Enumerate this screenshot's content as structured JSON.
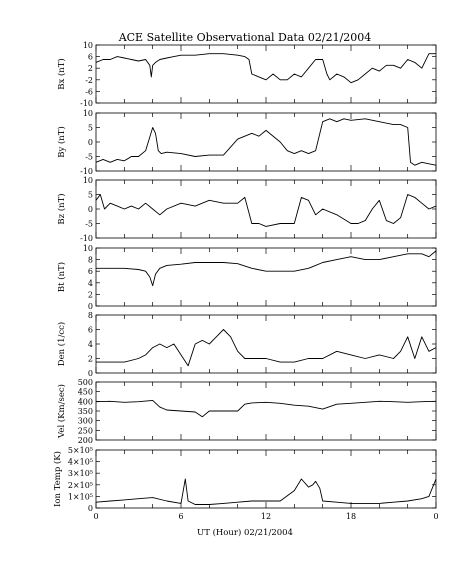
{
  "chart_data": {
    "type": "line",
    "title": "ACE Satellite Observational Data   02/21/2004",
    "xlabel": "UT (Hour)   02/21/2004",
    "x_tick_labels": [
      "0",
      "6",
      "12",
      "18",
      "0"
    ],
    "xlim": [
      0,
      24
    ],
    "color": "#000000",
    "panels": [
      {
        "ylabel": "Bx (nT)",
        "ylim": [
          -10,
          10
        ],
        "y_ticks": [
          -10,
          -6,
          -2,
          2,
          6,
          10
        ],
        "y_tick_labels": [
          "-10",
          "-6",
          "-2",
          "2",
          "6",
          "10"
        ],
        "x": [
          0,
          0.5,
          1.0,
          1.5,
          2.0,
          2.5,
          3.0,
          3.5,
          3.8,
          3.9,
          4.0,
          4.2,
          4.5,
          5.0,
          5.5,
          6.0,
          7.0,
          8.0,
          9.0,
          10.0,
          10.5,
          10.8,
          11.0,
          11.5,
          12.0,
          12.5,
          13.0,
          13.5,
          14.0,
          14.5,
          15.0,
          15.5,
          16.0,
          16.3,
          16.5,
          17.0,
          17.5,
          18.0,
          18.5,
          19.0,
          19.5,
          20.0,
          20.5,
          21.0,
          21.5,
          22.0,
          22.5,
          23.0,
          23.5,
          24.0
        ],
        "values": [
          4,
          5,
          5,
          6,
          5.5,
          5,
          4.5,
          5,
          3,
          -1,
          3,
          4,
          5,
          5.5,
          6,
          6.5,
          6.5,
          7,
          7,
          6.5,
          6,
          5,
          0,
          -1,
          -2,
          0,
          -2,
          -2,
          0,
          -1,
          2,
          5,
          5,
          0,
          -2,
          0,
          -1,
          -3,
          -2,
          0,
          2,
          1,
          3,
          3,
          2,
          5,
          4,
          2,
          7,
          7
        ]
      },
      {
        "ylabel": "By (nT)",
        "ylim": [
          -10,
          10
        ],
        "y_ticks": [
          -10,
          -5,
          0,
          5,
          10
        ],
        "y_tick_labels": [
          "-10",
          "-5",
          "0",
          "5",
          "10"
        ],
        "x": [
          0,
          0.5,
          1.0,
          1.5,
          2.0,
          2.5,
          3.0,
          3.5,
          4.0,
          4.2,
          4.4,
          4.6,
          5.0,
          6.0,
          7.0,
          8.0,
          9.0,
          10.0,
          11.0,
          11.5,
          12.0,
          13.0,
          13.5,
          14.0,
          14.5,
          15.0,
          15.5,
          16.0,
          16.5,
          17.0,
          17.5,
          18.0,
          19.0,
          20.0,
          21.0,
          21.5,
          22.0,
          22.2,
          22.5,
          23.0,
          23.5,
          24.0
        ],
        "values": [
          -7,
          -6,
          -7,
          -6,
          -6.5,
          -5,
          -5,
          -3,
          5,
          3,
          -3,
          -4,
          -3.5,
          -4,
          -5,
          -4.5,
          -4.5,
          1,
          3,
          2,
          4,
          0,
          -3,
          -4,
          -3,
          -4,
          -3,
          7,
          8,
          7,
          8,
          7.5,
          8,
          7,
          6,
          6,
          5,
          -7,
          -8,
          -7,
          -7.5,
          -8
        ]
      },
      {
        "ylabel": "Bz (nT)",
        "ylim": [
          -10,
          10
        ],
        "y_ticks": [
          -10,
          -5,
          0,
          5,
          10
        ],
        "y_tick_labels": [
          "-10",
          "-5",
          "0",
          "5",
          "10"
        ],
        "x": [
          0,
          0.3,
          0.6,
          1.0,
          1.5,
          2.0,
          2.5,
          3.0,
          3.5,
          4.0,
          4.5,
          5.0,
          6.0,
          7.0,
          8.0,
          9.0,
          10.0,
          10.5,
          11.0,
          11.5,
          12.0,
          13.0,
          14.0,
          14.5,
          15.0,
          15.5,
          16.0,
          17.0,
          18.0,
          18.5,
          19.0,
          19.5,
          20.0,
          20.5,
          21.0,
          21.5,
          22.0,
          22.5,
          23.0,
          23.5,
          24.0
        ],
        "values": [
          3,
          5,
          0,
          2,
          1,
          0,
          1,
          0,
          2,
          0,
          -2,
          0,
          2,
          1,
          3,
          2,
          2,
          4,
          -5,
          -5,
          -6,
          -5,
          -5,
          4,
          3,
          -2,
          0,
          -2,
          -5,
          -5,
          -4,
          0,
          3,
          -4,
          -5,
          -3,
          5,
          4,
          2,
          0,
          1
        ]
      },
      {
        "ylabel": "Bt (nT)",
        "ylim": [
          0,
          10
        ],
        "y_ticks": [
          0,
          2,
          4,
          6,
          8,
          10
        ],
        "y_tick_labels": [
          "0",
          "2",
          "4",
          "6",
          "8",
          "10"
        ],
        "x": [
          0,
          1.0,
          2.0,
          3.0,
          3.5,
          3.8,
          4.0,
          4.2,
          4.5,
          5.0,
          6.0,
          7.0,
          8.0,
          9.0,
          10.0,
          11.0,
          12.0,
          13.0,
          14.0,
          15.0,
          15.5,
          16.0,
          17.0,
          18.0,
          19.0,
          20.0,
          21.0,
          22.0,
          23.0,
          23.5,
          24.0
        ],
        "values": [
          6.5,
          6.5,
          6.5,
          6.3,
          6,
          5,
          3.5,
          5.5,
          6.5,
          7,
          7.2,
          7.5,
          7.5,
          7.5,
          7.3,
          6.5,
          6,
          6,
          6,
          6.5,
          7,
          7.5,
          8,
          8.5,
          8,
          8,
          8.5,
          9,
          9,
          8.5,
          9.5
        ]
      },
      {
        "ylabel": "Den (1/cc)",
        "ylim": [
          0,
          8
        ],
        "y_ticks": [
          0,
          2,
          4,
          6,
          8
        ],
        "y_tick_labels": [
          "0",
          "2",
          "4",
          "6",
          "8"
        ],
        "x": [
          0,
          1.0,
          2.0,
          3.0,
          3.5,
          4.0,
          4.5,
          5.0,
          5.5,
          6.0,
          6.5,
          7.0,
          7.5,
          8.0,
          8.5,
          9.0,
          9.5,
          10.0,
          10.5,
          11.0,
          12.0,
          13.0,
          14.0,
          15.0,
          16.0,
          17.0,
          18.0,
          19.0,
          20.0,
          21.0,
          21.5,
          22.0,
          22.5,
          23.0,
          23.5,
          24.0
        ],
        "values": [
          1.5,
          1.5,
          1.5,
          2,
          2.5,
          3.5,
          4,
          3.5,
          4,
          2.5,
          1,
          4,
          4.5,
          4,
          5,
          6,
          5,
          3,
          2,
          2,
          2,
          1.5,
          1.5,
          2,
          2,
          3,
          2.5,
          2,
          2.5,
          2,
          3,
          5,
          2,
          5,
          3,
          3.5
        ]
      },
      {
        "ylabel": "Vel (Km/sec)",
        "ylim": [
          200,
          500
        ],
        "y_ticks": [
          200,
          250,
          300,
          350,
          400,
          450,
          500
        ],
        "y_tick_labels": [
          "200",
          "250",
          "300",
          "350",
          "400",
          "450",
          "500"
        ],
        "x": [
          0,
          1.0,
          2.0,
          3.0,
          4.0,
          4.5,
          5.0,
          6.0,
          7.0,
          7.5,
          8.0,
          9.0,
          10.0,
          10.5,
          11.0,
          12.0,
          13.0,
          14.0,
          15.0,
          16.0,
          17.0,
          18.0,
          19.0,
          20.0,
          21.0,
          22.0,
          23.0,
          24.0
        ],
        "values": [
          398,
          400,
          395,
          398,
          405,
          370,
          355,
          350,
          345,
          320,
          350,
          350,
          350,
          385,
          392,
          395,
          390,
          380,
          375,
          360,
          385,
          390,
          395,
          400,
          398,
          395,
          398,
          400
        ]
      },
      {
        "ylabel": "Ion Temp (K)",
        "ylim": [
          0,
          500000
        ],
        "y_ticks": [
          0,
          100000,
          200000,
          300000,
          400000,
          500000
        ],
        "y_tick_labels": [
          "0",
          "1×10⁵",
          "2×10⁵",
          "3×10⁵",
          "4×10⁵",
          "5×10⁵"
        ],
        "x": [
          0,
          1.0,
          2.0,
          3.0,
          4.0,
          5.0,
          6.0,
          6.3,
          6.5,
          7.0,
          8.0,
          9.0,
          10.0,
          11.0,
          12.0,
          13.0,
          14.0,
          14.5,
          15.0,
          15.3,
          15.5,
          15.8,
          16.0,
          17.0,
          18.0,
          19.0,
          20.0,
          21.0,
          22.0,
          23.0,
          23.5,
          24.0
        ],
        "values": [
          50000,
          60000,
          70000,
          80000,
          90000,
          60000,
          40000,
          250000,
          60000,
          30000,
          30000,
          40000,
          50000,
          60000,
          60000,
          60000,
          150000,
          250000,
          180000,
          200000,
          230000,
          170000,
          60000,
          50000,
          40000,
          40000,
          40000,
          50000,
          60000,
          80000,
          100000,
          250000
        ]
      }
    ]
  }
}
